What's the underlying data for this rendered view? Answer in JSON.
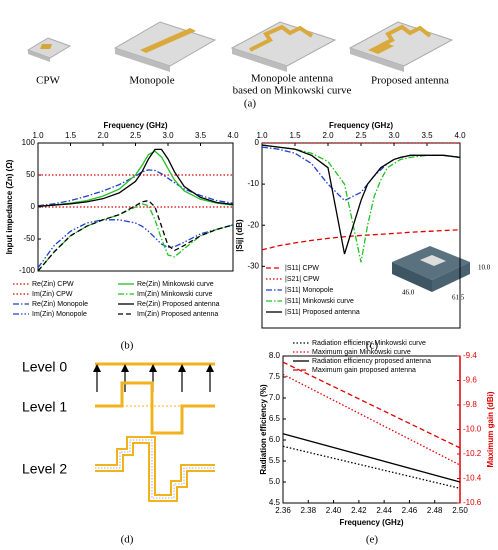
{
  "figure": {
    "a_labels": [
      "CPW",
      "Monopole",
      "Monopole antenna",
      "based on Minkowski curve",
      "Proposed antenna"
    ],
    "panels": [
      "(a)",
      "(b)",
      "(c)",
      "(d)",
      "(e)"
    ],
    "levels": [
      "Level 0",
      "Level 1",
      "Level 2"
    ],
    "inset_dims": [
      "10.0",
      "61.5",
      "46.0"
    ]
  },
  "chart_data": [
    {
      "type": "line",
      "x_label": "Frequency (GHz)",
      "y_label": "Input impedance (Zn) (Ω)",
      "legend": "below",
      "x": [
        1.0,
        1.25,
        1.5,
        1.75,
        2.0,
        2.25,
        2.5,
        2.6,
        2.7,
        2.8,
        2.9,
        3.0,
        3.1,
        3.25,
        3.5,
        3.75,
        4.0
      ],
      "xlim": [
        1.0,
        4.0
      ],
      "xticks": [
        {
          "value": 1,
          "label": "1.0"
        },
        1.5,
        {
          "value": 2,
          "label": "2.0"
        },
        2.5,
        {
          "value": 3,
          "label": "3.0"
        },
        3.5,
        {
          "value": 4,
          "label": "4.0"
        }
      ],
      "ylim": [
        -100,
        100
      ],
      "yticks": [
        -100,
        -50,
        0,
        50,
        100
      ],
      "series": [
        {
          "name": "Re(Zin) CPW",
          "color": "#e00000",
          "style": "dotted",
          "values": [
            50,
            50,
            50,
            50,
            50,
            50,
            50,
            50,
            50,
            50,
            50,
            50,
            50,
            50,
            50,
            50,
            50
          ]
        },
        {
          "name": "Im(Zin) CPW",
          "color": "#e00000",
          "style": "dotted",
          "values": [
            0,
            0,
            0,
            0,
            0,
            0,
            0,
            0,
            0,
            0,
            0,
            0,
            0,
            0,
            0,
            0,
            0
          ]
        },
        {
          "name": "Re(Zin) Monopole",
          "color": "#1f3fd0",
          "style": "dashdot",
          "values": [
            2,
            5,
            10,
            17,
            25,
            35,
            48,
            55,
            58,
            57,
            52,
            45,
            38,
            28,
            18,
            10,
            6
          ]
        },
        {
          "name": "Im(Zin) Monopole",
          "color": "#1f3fd0",
          "style": "dashdotdot",
          "values": [
            -95,
            -60,
            -38,
            -25,
            -20,
            -20,
            -25,
            -30,
            -38,
            -48,
            -58,
            -63,
            -62,
            -55,
            -42,
            -35,
            -28
          ]
        },
        {
          "name": "Re(Zin) Minkowski curve",
          "color": "#22c022",
          "style": "solid",
          "values": [
            1,
            3,
            6,
            10,
            17,
            28,
            50,
            65,
            82,
            87,
            78,
            60,
            42,
            25,
            12,
            6,
            3
          ]
        },
        {
          "name": "Im(Zin) Minkowski curve",
          "color": "#22c022",
          "style": "dashdot",
          "values": [
            -100,
            -70,
            -45,
            -30,
            -20,
            -12,
            0,
            5,
            2,
            -20,
            -50,
            -75,
            -78,
            -65,
            -45,
            -35,
            -28
          ]
        },
        {
          "name": "Re(Zin) Proposed antenna",
          "color": "#000000",
          "style": "solid",
          "values": [
            1,
            3,
            5,
            8,
            13,
            22,
            40,
            55,
            75,
            90,
            90,
            75,
            55,
            32,
            15,
            7,
            4
          ]
        },
        {
          "name": "Im(Zin) Proposed antenna",
          "color": "#000000",
          "style": "dashed",
          "values": [
            -100,
            -70,
            -45,
            -30,
            -20,
            -12,
            2,
            8,
            10,
            0,
            -30,
            -60,
            -68,
            -60,
            -45,
            -35,
            -28
          ]
        }
      ]
    },
    {
      "type": "line",
      "x_label": "Frequency (GHz)",
      "y_label": "|Sij| (dB)",
      "legend": "lower left",
      "x": [
        1.0,
        1.25,
        1.5,
        1.75,
        2.0,
        2.25,
        2.5,
        2.6,
        2.7,
        2.8,
        2.9,
        3.0,
        3.1,
        3.25,
        3.5,
        3.75,
        4.0
      ],
      "xlim": [
        1.0,
        4.0
      ],
      "xticks": [
        {
          "value": 1,
          "label": "1.0"
        },
        1.5,
        {
          "value": 2,
          "label": "2.0"
        },
        2.5,
        {
          "value": 3,
          "label": "3.0"
        },
        3.5,
        {
          "value": 4,
          "label": "4.0"
        }
      ],
      "ylim": [
        -45,
        0
      ],
      "yticks": [
        -30,
        -20,
        -10,
        0
      ],
      "series": [
        {
          "name": "|S11| CPW",
          "color": "#e00000",
          "style": "dashed",
          "values": [
            -26,
            -25,
            -24.3,
            -23.7,
            -23.2,
            -22.8,
            -22.5,
            -22.4,
            -22.3,
            -22.2,
            -22.1,
            -22,
            -21.9,
            -21.7,
            -21.5,
            -21.3,
            -21.1
          ]
        },
        {
          "name": "|S21| CPW",
          "color": "#e00000",
          "style": "dotted",
          "values": [
            0,
            0,
            0,
            0,
            0,
            0,
            0,
            0,
            0,
            0,
            0,
            0,
            0,
            0,
            0,
            0,
            0
          ]
        },
        {
          "name": "|S11| Monopole",
          "color": "#1f3fd0",
          "style": "dashdot",
          "values": [
            -1,
            -1.5,
            -2.5,
            -5,
            -10,
            -14,
            -12,
            -10,
            -8,
            -6.5,
            -5,
            -4,
            -3.5,
            -3,
            -3,
            -3,
            -3.5
          ]
        },
        {
          "name": "|S11| Minkowski curve",
          "color": "#22c022",
          "style": "dashdot",
          "values": [
            -0.5,
            -1,
            -1.5,
            -2.5,
            -4.5,
            -10,
            -29,
            -20,
            -13,
            -9,
            -6,
            -5,
            -4,
            -3.5,
            -3,
            -3,
            -3.5
          ]
        },
        {
          "name": "|S11| Proposed antenna",
          "color": "#000000",
          "style": "solid",
          "values": [
            -0.5,
            -1,
            -1.5,
            -3,
            -6,
            -27,
            -14,
            -10,
            -8,
            -6,
            -5,
            -4,
            -3.5,
            -3,
            -3,
            -3,
            -3.5
          ]
        }
      ]
    },
    {
      "type": "line",
      "x_label": "Frequency (GHz)",
      "y_label": "Radiation efficiency (%)",
      "y2_label": "Maximum gain (dBi)",
      "legend": "above",
      "x": [
        2.36,
        2.5
      ],
      "xlim": [
        2.36,
        2.5
      ],
      "xticks": [
        2.36,
        2.38,
        {
          "value": 2.4,
          "label": "2.40"
        },
        2.42,
        2.44,
        2.46,
        2.48,
        {
          "value": 2.5,
          "label": "2.50"
        }
      ],
      "ylim": [
        4.5,
        8.0
      ],
      "yticks": [
        4.5,
        {
          "value": 5,
          "label": "5.0"
        },
        5.5,
        {
          "value": 6,
          "label": "6.0"
        },
        6.5,
        {
          "value": 7,
          "label": "7.0"
        },
        7.5,
        {
          "value": 8,
          "label": "8.0"
        }
      ],
      "y2lim": [
        -10.6,
        -9.4
      ],
      "y2ticks": [
        -10.6,
        -10.4,
        -10.2,
        {
          "value": -10,
          "label": "-10.0"
        },
        -9.8,
        -9.6,
        -9.4
      ],
      "series": [
        {
          "name": "Radiation efficiency Minkowski curve",
          "color": "#000000",
          "style": "dotted",
          "values": [
            5.85,
            4.85
          ]
        },
        {
          "name": "Maximum gain Minkowski curve",
          "color": "#e00000",
          "style": "dotted",
          "axis": "y2",
          "values": [
            -9.55,
            -10.29
          ]
        },
        {
          "name": "Radiation efficiency proposed antenna",
          "color": "#000000",
          "style": "solid",
          "values": [
            6.15,
            5.0
          ]
        },
        {
          "name": "Maximum gain proposed antenna",
          "color": "#e00000",
          "style": "dashed",
          "axis": "y2",
          "values": [
            -9.45,
            -10.15
          ]
        }
      ]
    }
  ]
}
